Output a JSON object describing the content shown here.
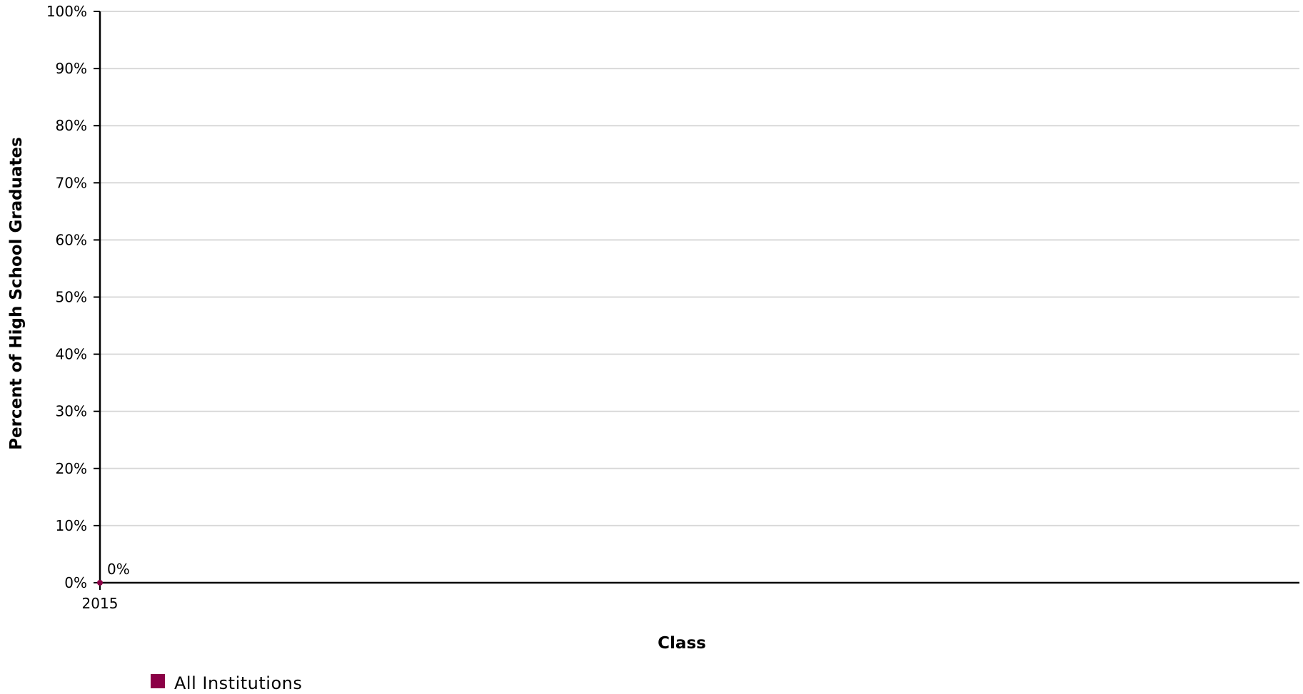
{
  "chart_data": {
    "type": "line",
    "x": [
      "2015"
    ],
    "series": [
      {
        "name": "All Institutions",
        "values": [
          0
        ],
        "data_labels": [
          "0%"
        ],
        "color": "#8b0046"
      }
    ],
    "xlabel": "Class",
    "ylabel": "Percent of High School Graduates",
    "ylim": [
      0,
      100
    ],
    "yticks": [
      0,
      10,
      20,
      30,
      40,
      50,
      60,
      70,
      80,
      90,
      100
    ],
    "ytick_labels": [
      "0%",
      "10%",
      "20%",
      "30%",
      "40%",
      "50%",
      "60%",
      "70%",
      "80%",
      "90%",
      "100%"
    ],
    "xtick_labels": [
      "2015"
    ],
    "grid": true,
    "legend_position": "bottom-left"
  }
}
